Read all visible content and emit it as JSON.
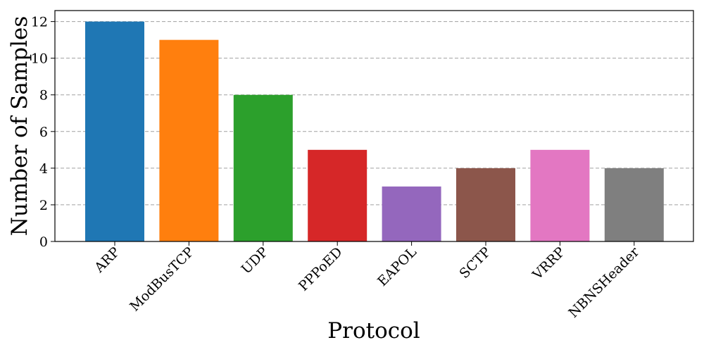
{
  "chart_data": {
    "type": "bar",
    "title": "",
    "xlabel": "Protocol",
    "ylabel": "Number of Samples",
    "categories": [
      "ARP",
      "ModBusTCP",
      "UDP",
      "PPPoED",
      "EAPOL",
      "SCTP",
      "VRRP",
      "NBNSHeader"
    ],
    "values": [
      12,
      11,
      8,
      5,
      3,
      4,
      5,
      4
    ],
    "colors": [
      "#1f77b4",
      "#ff7f0e",
      "#2ca02c",
      "#d62728",
      "#9467bd",
      "#8c564b",
      "#e377c2",
      "#7f7f7f"
    ],
    "ylim": [
      0,
      12.6
    ],
    "yticks": [
      0,
      2,
      4,
      6,
      8,
      10,
      12
    ],
    "grid": "y-dashed",
    "legend": "none"
  }
}
